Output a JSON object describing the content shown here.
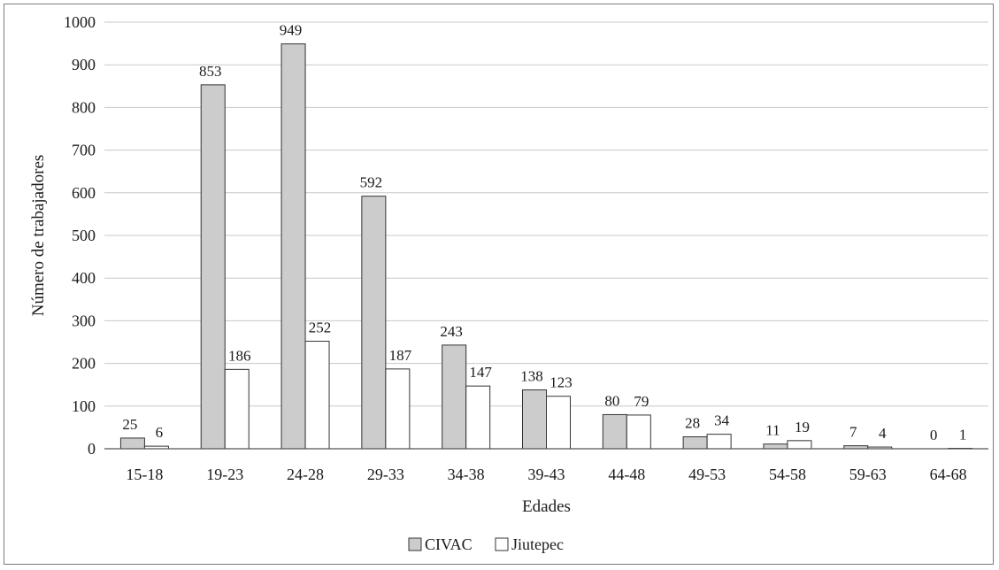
{
  "chart_data": {
    "type": "bar",
    "categories": [
      "15-18",
      "19-23",
      "24-28",
      "29-33",
      "34-38",
      "39-43",
      "44-48",
      "49-53",
      "54-58",
      "59-63",
      "64-68"
    ],
    "series": [
      {
        "name": "CIVAC",
        "values": [
          25,
          853,
          949,
          592,
          243,
          138,
          80,
          28,
          11,
          7,
          0
        ],
        "color": "#cccccc"
      },
      {
        "name": "Jiutepec",
        "values": [
          6,
          186,
          252,
          187,
          147,
          123,
          79,
          34,
          19,
          4,
          1
        ],
        "color": "#ffffff"
      }
    ],
    "xlabel": "Edades",
    "ylabel": "Número de trabajadores",
    "ylim": [
      0,
      1000
    ],
    "yticks": [
      0,
      100,
      200,
      300,
      400,
      500,
      600,
      700,
      800,
      900,
      1000
    ],
    "grid": true,
    "legend_position": "bottom-center",
    "colors": {
      "gridline": "#c8c8c8",
      "bar_stroke": "#333333",
      "axis": "#555555"
    }
  }
}
